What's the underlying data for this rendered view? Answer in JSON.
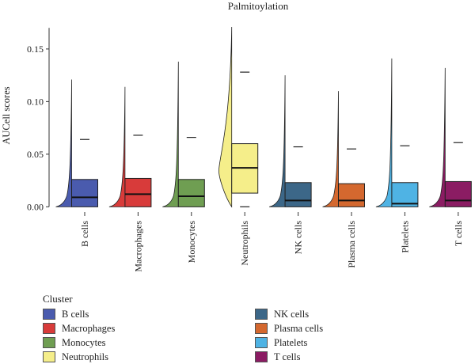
{
  "chart_data": {
    "type": "violin-box",
    "title": "Palmitoylation",
    "xlabel": "",
    "ylabel": "AUCell scores",
    "ylim": [
      -0.005,
      0.18
    ],
    "yticks": [
      0.0,
      0.05,
      0.1,
      0.15
    ],
    "ytick_labels": [
      "0.00",
      "0.05",
      "0.10",
      "0.15"
    ],
    "grid": false,
    "legend_title": "Cluster",
    "legend_position": "bottom-left",
    "categories": [
      "B cells",
      "Macrophages",
      "Monocytes",
      "Neutrophils",
      "NK cells",
      "Plasma cells",
      "Platelets",
      "T cells"
    ],
    "series": [
      {
        "name": "B cells",
        "color": "#4A5BAE",
        "min": 0.0,
        "q1": 0.0,
        "median": 0.009,
        "q3": 0.026,
        "whisker_high": 0.064,
        "max": 0.121
      },
      {
        "name": "Macrophages",
        "color": "#D83B3A",
        "min": 0.0,
        "q1": 0.0,
        "median": 0.012,
        "q3": 0.027,
        "whisker_high": 0.068,
        "max": 0.114
      },
      {
        "name": "Monocytes",
        "color": "#6F9E52",
        "min": 0.0,
        "q1": 0.0,
        "median": 0.01,
        "q3": 0.026,
        "whisker_high": 0.066,
        "max": 0.138
      },
      {
        "name": "Neutrophils",
        "color": "#F5EE8A",
        "min": 0.0,
        "q1": 0.013,
        "median": 0.037,
        "q3": 0.06,
        "whisker_high": 0.128,
        "max": 0.171
      },
      {
        "name": "NK cells",
        "color": "#3C6788",
        "min": 0.0,
        "q1": 0.0,
        "median": 0.006,
        "q3": 0.023,
        "whisker_high": 0.057,
        "max": 0.125
      },
      {
        "name": "Plasma cells",
        "color": "#D4682F",
        "min": 0.0,
        "q1": 0.0,
        "median": 0.006,
        "q3": 0.022,
        "whisker_high": 0.055,
        "max": 0.11
      },
      {
        "name": "Platelets",
        "color": "#4FB3E4",
        "min": 0.0,
        "q1": 0.0,
        "median": 0.003,
        "q3": 0.023,
        "whisker_high": 0.058,
        "max": 0.141
      },
      {
        "name": "T cells",
        "color": "#8B1C63",
        "min": 0.0,
        "q1": 0.0,
        "median": 0.006,
        "q3": 0.024,
        "whisker_high": 0.061,
        "max": 0.132
      }
    ]
  }
}
